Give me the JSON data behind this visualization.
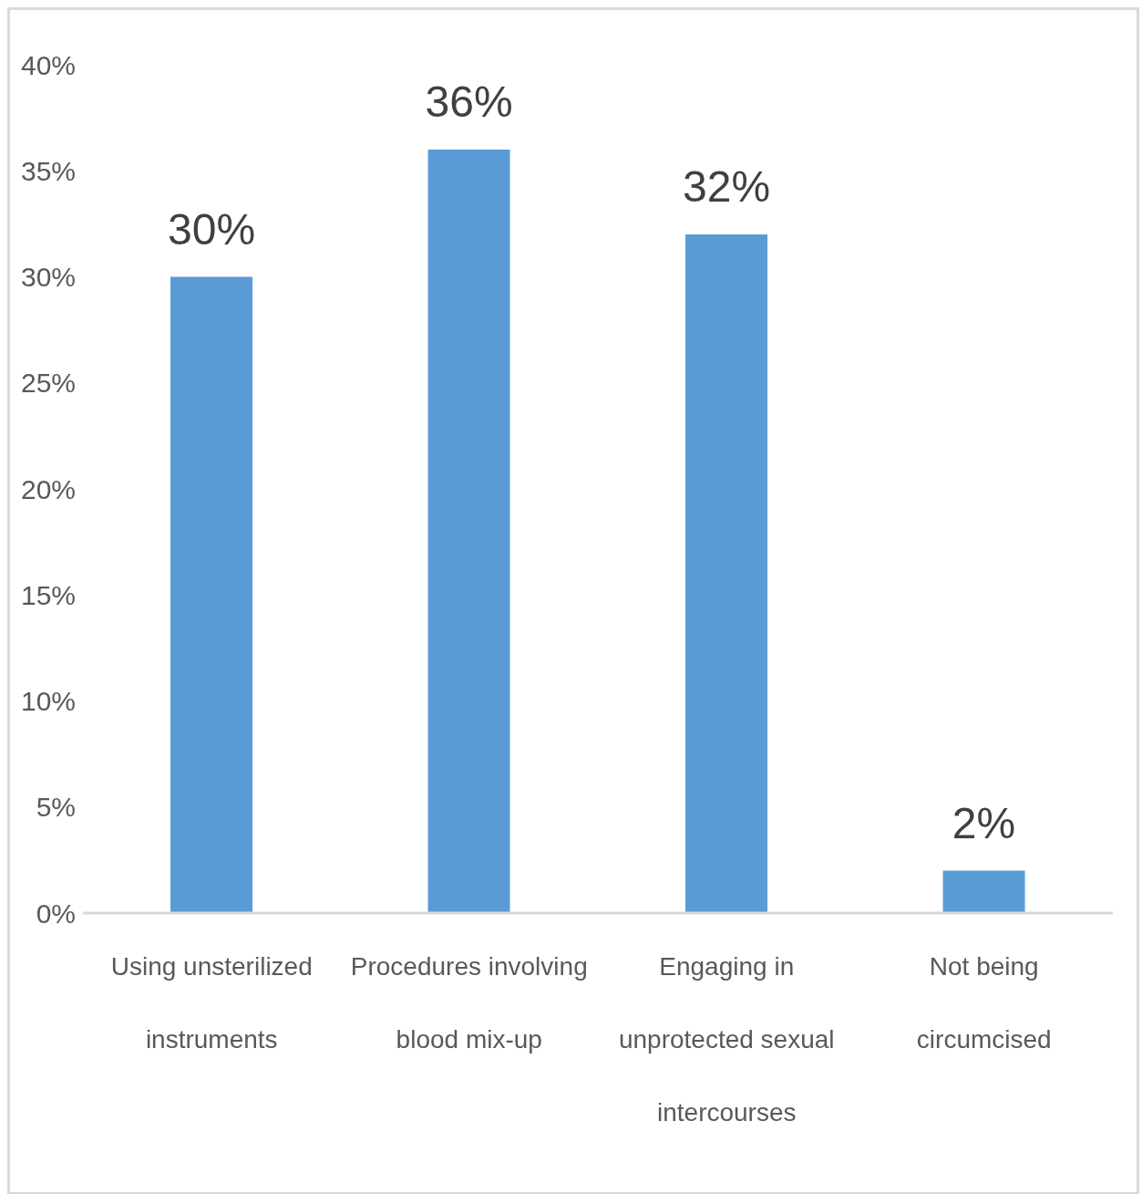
{
  "chart_data": {
    "type": "bar",
    "categories": [
      "Using unsterilized instruments",
      "Procedures involving blood mix-up",
      "Engaging in unprotected sexual intercourses",
      "Not being circumcised"
    ],
    "values": [
      30,
      36,
      32,
      2
    ],
    "color": "#5b9bd5",
    "ylim": [
      0,
      40
    ],
    "yticks": [
      {
        "value": 0,
        "label": "0%"
      },
      {
        "value": 5,
        "label": "5%"
      },
      {
        "value": 10,
        "label": "10%"
      },
      {
        "value": 15,
        "label": "15%"
      },
      {
        "value": 20,
        "label": "20%"
      },
      {
        "value": 25,
        "label": "25%"
      },
      {
        "value": 30,
        "label": "30%"
      },
      {
        "value": 35,
        "label": "35%"
      },
      {
        "value": 40,
        "label": "40%"
      }
    ],
    "value_labels": [
      "30%",
      "36%",
      "32%",
      "2%"
    ],
    "grid": false
  }
}
